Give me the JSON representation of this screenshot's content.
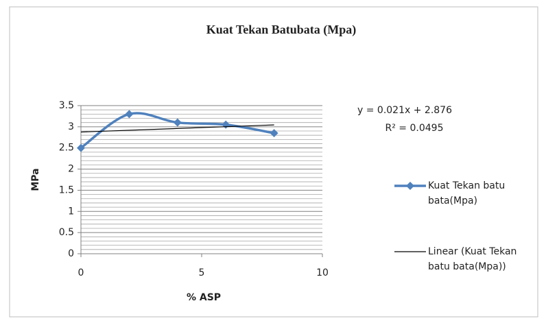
{
  "chart_data": {
    "type": "scatter",
    "title": "Kuat Tekan Batubata (Mpa)",
    "x_label": "% ASP",
    "y_label": "MPa",
    "series": [
      {
        "name": "Kuat Tekan batu bata(Mpa)",
        "color": "#4f81bd",
        "x": [
          0,
          2,
          4,
          6,
          8
        ],
        "values": [
          2.5,
          3.3,
          3.1,
          3.05,
          2.85
        ],
        "smooth": true,
        "marker": "diamond"
      },
      {
        "name": "Linear (Kuat Tekan batu bata(Mpa))",
        "color": "#000000",
        "x": [
          0,
          8
        ],
        "values": [
          2.876,
          3.044
        ],
        "trendline": true
      }
    ],
    "annotations": [
      "y = 0.021x + 2.876",
      "R² = 0.0495"
    ],
    "xlim": [
      0,
      10
    ],
    "xticks": [
      0,
      5,
      10
    ],
    "ylim": [
      0,
      3.5
    ],
    "yticks": [
      0,
      0.5,
      1,
      1.5,
      2,
      2.5,
      3,
      3.5
    ],
    "grid": true,
    "minor_grid": true,
    "legend": "right"
  }
}
